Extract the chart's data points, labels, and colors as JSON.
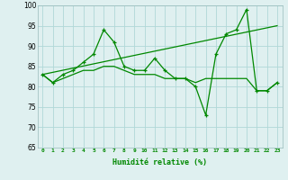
{
  "line1_x": [
    0,
    1,
    2,
    3,
    4,
    5,
    6,
    7,
    8,
    9,
    10,
    11,
    12,
    13,
    14,
    15,
    16,
    17,
    18,
    19,
    20,
    21,
    22,
    23
  ],
  "line1_y": [
    83,
    81,
    83,
    84,
    86,
    88,
    94,
    91,
    85,
    84,
    84,
    87,
    84,
    82,
    82,
    80,
    73,
    88,
    93,
    94,
    99,
    79,
    79,
    81
  ],
  "line2_x": [
    0,
    23
  ],
  "line2_y": [
    83,
    95
  ],
  "line3_x": [
    0,
    1,
    2,
    3,
    4,
    5,
    6,
    7,
    8,
    9,
    10,
    11,
    12,
    13,
    14,
    15,
    16,
    17,
    18,
    19,
    20,
    21,
    22,
    23
  ],
  "line3_y": [
    83,
    81,
    82,
    83,
    84,
    84,
    85,
    85,
    84,
    83,
    83,
    83,
    82,
    82,
    82,
    81,
    82,
    82,
    82,
    82,
    82,
    79,
    79,
    81
  ],
  "line_color": "#008800",
  "bg_color": "#dff0f0",
  "grid_color": "#b0d8d8",
  "xlabel": "Humidité relative (%)",
  "ylim": [
    65,
    100
  ],
  "xlim": [
    -0.5,
    23.5
  ],
  "yticks": [
    65,
    70,
    75,
    80,
    85,
    90,
    95,
    100
  ],
  "xticks": [
    0,
    1,
    2,
    3,
    4,
    5,
    6,
    7,
    8,
    9,
    10,
    11,
    12,
    13,
    14,
    15,
    16,
    17,
    18,
    19,
    20,
    21,
    22,
    23
  ],
  "xtick_labels": [
    "0",
    "1",
    "2",
    "3",
    "4",
    "5",
    "6",
    "7",
    "8",
    "9",
    "10",
    "11",
    "12",
    "13",
    "14",
    "15",
    "16",
    "17",
    "18",
    "19",
    "20",
    "21",
    "22",
    "23"
  ]
}
